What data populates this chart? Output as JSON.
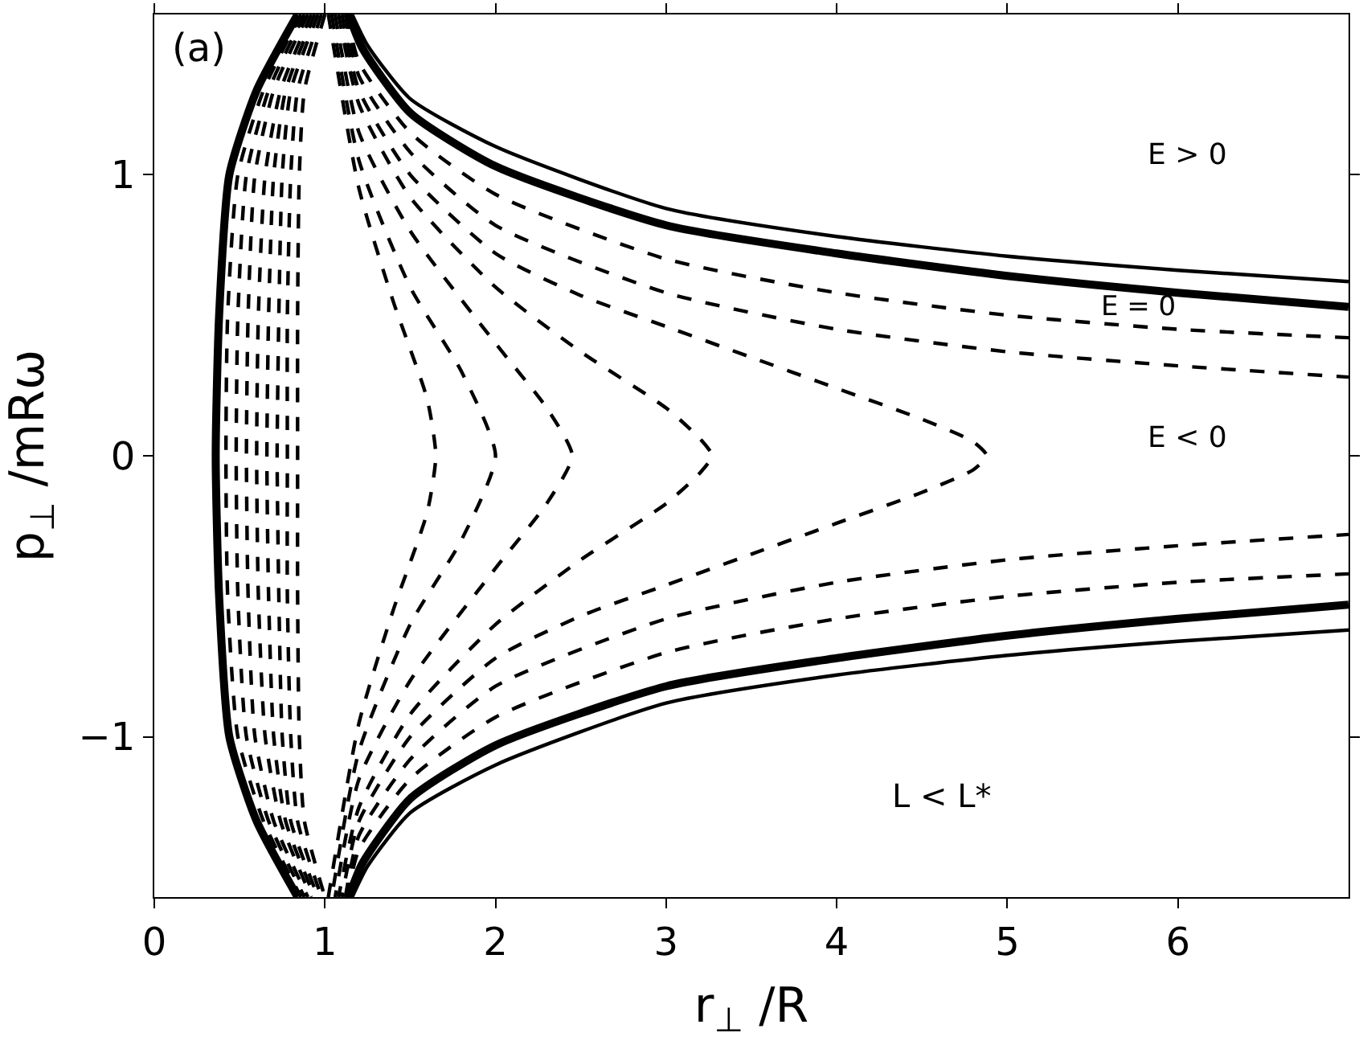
{
  "chart_data": {
    "type": "line",
    "xlabel": "r$_{⊥}$ /R",
    "ylabel": "p$_{⊥}$ /mRω",
    "xlim": [
      0,
      7
    ],
    "ylim": [
      -1.57,
      1.57
    ],
    "xticks": [
      0,
      1,
      2,
      3,
      4,
      5,
      6
    ],
    "yticks": [
      -1,
      0,
      1
    ],
    "marker": "none",
    "annotations": [
      "(a)",
      "E > 0",
      "E = 0",
      "E < 0",
      "L < L*"
    ],
    "series": [
      {
        "color": "#000000",
        "line_style": "solid",
        "x": [
          1.16,
          1.25,
          1.5,
          2,
          3,
          4,
          5,
          6,
          7
        ],
        "values": [
          1.57,
          1.46,
          1.27,
          1.1,
          0.88,
          0.78,
          0.71,
          0.66,
          0.62
        ]
      },
      {
        "color": "#000000",
        "line_style": "solid",
        "x": [
          1.16,
          1.25,
          1.5,
          2,
          3,
          4,
          5,
          6,
          7
        ],
        "values": [
          -1.57,
          -1.46,
          -1.27,
          -1.1,
          -0.88,
          -0.78,
          -0.71,
          -0.66,
          -0.62
        ]
      },
      {
        "color": "#000000",
        "line_style": "solid",
        "x": [
          1.14,
          1.22,
          1.5,
          2,
          3,
          4,
          5,
          6,
          7
        ],
        "values": [
          1.57,
          1.45,
          1.22,
          1.03,
          0.82,
          0.72,
          0.64,
          0.58,
          0.53
        ]
      },
      {
        "color": "#000000",
        "line_style": "solid",
        "x": [
          1.14,
          1.22,
          1.5,
          2,
          3,
          4,
          5,
          6,
          7
        ],
        "values": [
          -1.57,
          -1.45,
          -1.22,
          -1.03,
          -0.82,
          -0.72,
          -0.64,
          -0.58,
          -0.53
        ]
      },
      {
        "color": "#000000",
        "line_style": "dashed",
        "x": [
          1.13,
          1.2,
          1.5,
          2,
          3,
          4,
          5,
          6,
          7
        ],
        "values": [
          1.57,
          1.4,
          1.15,
          0.93,
          0.7,
          0.58,
          0.5,
          0.45,
          0.42
        ]
      },
      {
        "color": "#000000",
        "line_style": "dashed",
        "x": [
          1.13,
          1.2,
          1.5,
          2,
          3,
          4,
          5,
          6,
          7
        ],
        "values": [
          -1.57,
          -1.4,
          -1.15,
          -0.93,
          -0.7,
          -0.58,
          -0.5,
          -0.45,
          -0.42
        ]
      },
      {
        "color": "#000000",
        "line_style": "dashed",
        "x": [
          1.12,
          1.2,
          1.5,
          2,
          3,
          4,
          5,
          6,
          7
        ],
        "values": [
          1.57,
          1.35,
          1.08,
          0.82,
          0.58,
          0.45,
          0.37,
          0.32,
          0.28
        ]
      },
      {
        "color": "#000000",
        "line_style": "dashed",
        "x": [
          1.12,
          1.2,
          1.5,
          2,
          3,
          4,
          5,
          6,
          7
        ],
        "values": [
          -1.57,
          -1.35,
          -1.08,
          -0.82,
          -0.58,
          -0.45,
          -0.37,
          -0.32,
          -0.28
        ]
      },
      {
        "color": "#000000",
        "line_style": "dashed",
        "x": [
          1.1,
          1.2,
          1.5,
          2,
          2.5,
          3,
          3.5,
          4,
          4.5,
          4.8,
          4.88,
          4.8,
          4.5,
          4,
          3.5,
          3,
          2.5,
          2,
          1.5,
          1.2,
          1.1
        ],
        "values": [
          1.57,
          1.3,
          1.0,
          0.72,
          0.57,
          0.46,
          0.35,
          0.24,
          0.13,
          0.05,
          0,
          -0.05,
          -0.13,
          -0.24,
          -0.35,
          -0.46,
          -0.57,
          -0.72,
          -1.0,
          -1.3,
          -1.57
        ]
      },
      {
        "color": "#000000",
        "line_style": "dashed",
        "x": [
          1.08,
          1.2,
          1.5,
          2,
          2.5,
          3,
          3.2,
          3.27,
          3.2,
          3,
          2.5,
          2,
          1.5,
          1.2,
          1.08
        ],
        "values": [
          1.57,
          1.25,
          0.92,
          0.6,
          0.37,
          0.17,
          0.06,
          0,
          -0.06,
          -0.17,
          -0.37,
          -0.6,
          -0.92,
          -1.25,
          -1.57
        ]
      },
      {
        "color": "#000000",
        "line_style": "dashed",
        "x": [
          1.06,
          1.2,
          1.5,
          2,
          2.3,
          2.45,
          2.3,
          2,
          1.5,
          1.2,
          1.06
        ],
        "values": [
          1.57,
          1.15,
          0.8,
          0.4,
          0.17,
          0,
          -0.17,
          -0.4,
          -0.8,
          -1.15,
          -1.57
        ]
      },
      {
        "color": "#000000",
        "line_style": "dashed",
        "x": [
          1.04,
          1.2,
          1.5,
          1.8,
          2.0,
          1.8,
          1.5,
          1.2,
          1.04
        ],
        "values": [
          1.57,
          1.05,
          0.6,
          0.3,
          0,
          -0.3,
          -0.6,
          -1.05,
          -1.57
        ]
      },
      {
        "color": "#000000",
        "line_style": "dashed",
        "x": [
          1.02,
          1.2,
          1.4,
          1.6,
          1.65,
          1.6,
          1.4,
          1.2,
          1.02
        ],
        "values": [
          1.57,
          0.95,
          0.55,
          0.2,
          0,
          -0.2,
          -0.55,
          -0.95,
          -1.57
        ]
      },
      {
        "color": "#000000",
        "line_style": "solid",
        "x": [
          0.84,
          0.6,
          0.44,
          0.38,
          0.36,
          0.38,
          0.44,
          0.6,
          0.84
        ],
        "values": [
          1.57,
          1.3,
          1.0,
          0.5,
          0,
          -0.5,
          -1.0,
          -1.3,
          -1.57
        ]
      },
      {
        "color": "#000000",
        "line_style": "dashed",
        "x": [
          0.86,
          0.64,
          0.49,
          0.43,
          0.42,
          0.43,
          0.49,
          0.64,
          0.86
        ],
        "values": [
          1.57,
          1.3,
          1.0,
          0.5,
          0,
          -0.5,
          -1.0,
          -1.3,
          -1.57
        ]
      },
      {
        "color": "#000000",
        "line_style": "dashed",
        "x": [
          0.88,
          0.67,
          0.54,
          0.49,
          0.48,
          0.49,
          0.54,
          0.67,
          0.88
        ],
        "values": [
          1.57,
          1.3,
          1.0,
          0.5,
          0,
          -0.5,
          -1.0,
          -1.3,
          -1.57
        ]
      },
      {
        "color": "#000000",
        "line_style": "dashed",
        "x": [
          0.9,
          0.7,
          0.59,
          0.55,
          0.54,
          0.55,
          0.59,
          0.7,
          0.9
        ],
        "values": [
          1.57,
          1.3,
          1.0,
          0.5,
          0,
          -0.5,
          -1.0,
          -1.3,
          -1.57
        ]
      },
      {
        "color": "#000000",
        "line_style": "dashed",
        "x": [
          0.92,
          0.74,
          0.65,
          0.61,
          0.6,
          0.61,
          0.65,
          0.74,
          0.92
        ],
        "values": [
          1.57,
          1.3,
          1.0,
          0.5,
          0,
          -0.5,
          -1.0,
          -1.3,
          -1.57
        ]
      },
      {
        "color": "#000000",
        "line_style": "dashed",
        "x": [
          0.94,
          0.77,
          0.7,
          0.67,
          0.66,
          0.67,
          0.7,
          0.77,
          0.94
        ],
        "values": [
          1.57,
          1.3,
          1.0,
          0.5,
          0,
          -0.5,
          -1.0,
          -1.3,
          -1.57
        ]
      },
      {
        "color": "#000000",
        "line_style": "dashed",
        "x": [
          0.96,
          0.8,
          0.75,
          0.73,
          0.72,
          0.73,
          0.75,
          0.8,
          0.96
        ],
        "values": [
          1.57,
          1.3,
          1.0,
          0.5,
          0,
          -0.5,
          -1.0,
          -1.3,
          -1.57
        ]
      },
      {
        "color": "#000000",
        "line_style": "dashed",
        "x": [
          0.98,
          0.84,
          0.8,
          0.78,
          0.78,
          0.78,
          0.8,
          0.84,
          0.98
        ],
        "values": [
          1.57,
          1.3,
          1.0,
          0.5,
          0,
          -0.5,
          -1.0,
          -1.3,
          -1.57
        ]
      },
      {
        "color": "#000000",
        "line_style": "dashed",
        "x": [
          1.0,
          0.88,
          0.85,
          0.84,
          0.84,
          0.84,
          0.85,
          0.88,
          1.0
        ],
        "values": [
          1.57,
          1.3,
          1.0,
          0.5,
          0,
          -0.5,
          -1.0,
          -1.3,
          -1.57
        ]
      }
    ]
  }
}
